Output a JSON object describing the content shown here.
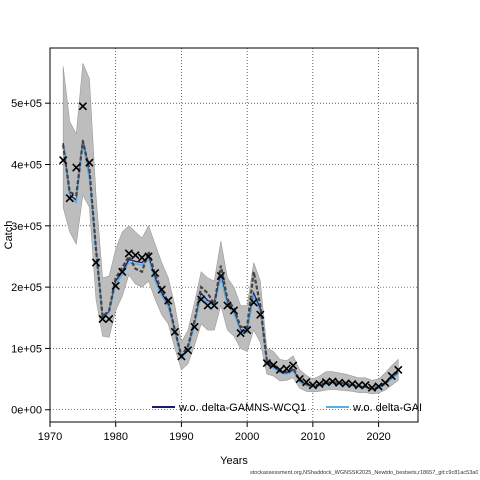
{
  "chart_data": {
    "type": "line",
    "title": "",
    "xlabel": "Years",
    "ylabel": "Catch",
    "xlim": [
      1970,
      2026
    ],
    "ylim": [
      -20000,
      590000
    ],
    "xticks": [
      1970,
      1980,
      1990,
      2000,
      2010,
      2020
    ],
    "xtick_labels": [
      "1970",
      "1980",
      "1990",
      "2000",
      "2010",
      "2020"
    ],
    "yticks": [
      0,
      100000,
      200000,
      300000,
      400000,
      500000
    ],
    "ytick_labels": [
      "0e+00",
      "1e+05",
      "2e+05",
      "3e+05",
      "4e+05",
      "5e+05"
    ],
    "grid": true,
    "legend_position": "bottom",
    "colors": {
      "band": "#bdbdbd",
      "series1": "#1a1a6e",
      "series2": "#5aaee8",
      "observed": "#000000",
      "estimate_dark": "#444444"
    },
    "x": [
      1972,
      1973,
      1974,
      1975,
      1976,
      1977,
      1978,
      1979,
      1980,
      1981,
      1982,
      1983,
      1984,
      1985,
      1986,
      1987,
      1988,
      1989,
      1990,
      1991,
      1992,
      1993,
      1994,
      1995,
      1996,
      1997,
      1998,
      1999,
      2000,
      2001,
      2002,
      2003,
      2004,
      2005,
      2006,
      2007,
      2008,
      2009,
      2010,
      2011,
      2012,
      2013,
      2014,
      2015,
      2016,
      2017,
      2018,
      2019,
      2020,
      2021,
      2022,
      2023
    ],
    "observed": [
      407000,
      345000,
      395000,
      495000,
      403000,
      240000,
      148000,
      148000,
      202000,
      225000,
      255000,
      252000,
      248000,
      250000,
      223000,
      196000,
      178000,
      127000,
      87000,
      97000,
      135000,
      180000,
      170000,
      170000,
      218000,
      170000,
      162000,
      125000,
      130000,
      175000,
      155000,
      76000,
      73000,
      65000,
      67000,
      72000,
      50000,
      45000,
      40000,
      42000,
      45000,
      46000,
      44000,
      43000,
      42000,
      40000,
      40000,
      36000,
      38000,
      44000,
      55000,
      65000
    ],
    "band_upper": [
      560000,
      470000,
      450000,
      565000,
      540000,
      350000,
      215000,
      218000,
      262000,
      290000,
      300000,
      290000,
      280000,
      300000,
      270000,
      240000,
      215000,
      170000,
      110000,
      130000,
      175000,
      225000,
      215000,
      210000,
      275000,
      215000,
      200000,
      170000,
      170000,
      240000,
      210000,
      100000,
      95000,
      82000,
      80000,
      88000,
      65000,
      56000,
      50000,
      55000,
      62000,
      62000,
      60000,
      58000,
      55000,
      52000,
      52000,
      48000,
      50000,
      60000,
      72000,
      82000
    ],
    "band_lower": [
      330000,
      290000,
      270000,
      350000,
      330000,
      180000,
      120000,
      118000,
      162000,
      185000,
      220000,
      205000,
      200000,
      210000,
      180000,
      155000,
      140000,
      100000,
      65000,
      75000,
      105000,
      140000,
      130000,
      130000,
      170000,
      130000,
      120000,
      100000,
      95000,
      130000,
      110000,
      58000,
      55000,
      47000,
      48000,
      52000,
      35000,
      30000,
      29000,
      30000,
      32000,
      33000,
      32000,
      31000,
      30000,
      28000,
      28000,
      26000,
      27000,
      32000,
      40000,
      48000
    ],
    "series": [
      {
        "name": "w.o. delta-GAMNS-WCQ1",
        "values": [
          435000,
          350000,
          342000,
          440000,
          380000,
          260000,
          150000,
          160000,
          210000,
          225000,
          245000,
          242000,
          240000,
          250000,
          215000,
          190000,
          172000,
          128000,
          85000,
          100000,
          140000,
          190000,
          178000,
          175000,
          220000,
          175000,
          160000,
          130000,
          128000,
          190000,
          165000,
          78000,
          70000,
          62000,
          60000,
          65000,
          47000,
          40000,
          38000,
          40000,
          42000,
          44000,
          43000,
          42000,
          40000,
          38000,
          37000,
          34000,
          36000,
          42000,
          52000,
          60000
        ]
      },
      {
        "name": "w.o. delta-GAI",
        "values": [
          430000,
          345000,
          338000,
          435000,
          375000,
          255000,
          148000,
          158000,
          205000,
          220000,
          240000,
          238000,
          236000,
          245000,
          210000,
          186000,
          168000,
          125000,
          83000,
          98000,
          138000,
          185000,
          174000,
          170000,
          215000,
          170000,
          157000,
          127000,
          125000,
          185000,
          160000,
          75000,
          68000,
          60000,
          58000,
          63000,
          45000,
          39000,
          37000,
          39000,
          41000,
          43000,
          42000,
          41000,
          39000,
          37000,
          36000,
          33000,
          35000,
          41000,
          51000,
          59000
        ]
      },
      {
        "name": "",
        "values": [
          432000,
          355000,
          350000,
          438000,
          392000,
          262000,
          152000,
          162000,
          215000,
          232000,
          250000,
          230000,
          225000,
          258000,
          220000,
          194000,
          176000,
          130000,
          88000,
          104000,
          145000,
          200000,
          190000,
          172000,
          235000,
          180000,
          165000,
          135000,
          135000,
          225000,
          170000,
          80000,
          74000,
          64000,
          62000,
          68000,
          48000,
          42000,
          39000,
          41000,
          44000,
          45000,
          44000,
          43000,
          41000,
          39000,
          38000,
          35000,
          37000,
          43000,
          53000,
          62000
        ]
      }
    ]
  },
  "footnote": "stockassessment.org,NShaddock_WGNSSK2025_Newtdo_bestsets,r18657_git:c9c81ac53a0d"
}
